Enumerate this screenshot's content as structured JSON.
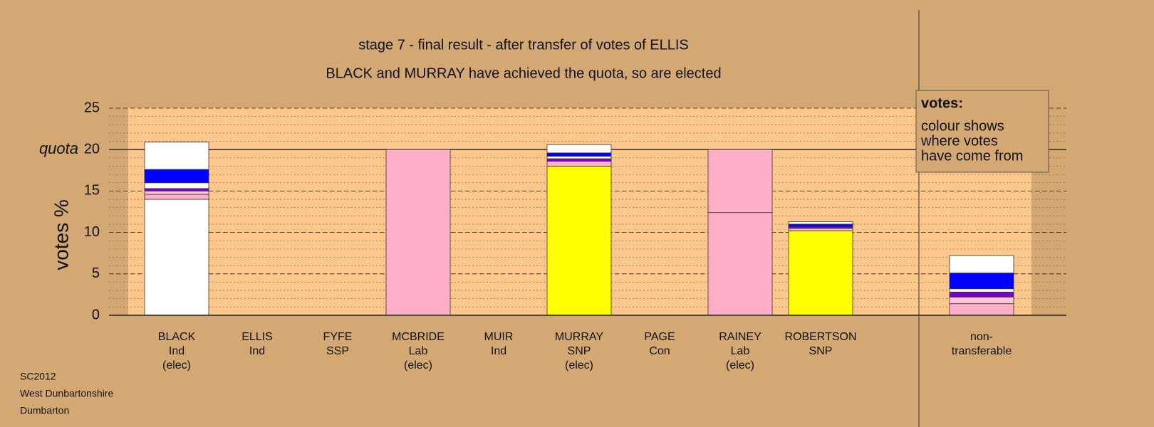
{
  "chart_data": {
    "type": "stacked-bar",
    "title": "stage 7 - final result - after transfer of votes of ELLIS",
    "subtitle": "BLACK and MURRAY have achieved the quota, so are elected",
    "y_label": "votes %",
    "quota_label": "quota",
    "quota": 20,
    "ylim": [
      0,
      25
    ],
    "yticks": [
      0,
      5,
      10,
      15,
      20,
      25
    ],
    "minor_step": 1,
    "categories": [
      [
        "BLACK",
        "Ind",
        "(elec)"
      ],
      [
        "ELLIS",
        "Ind"
      ],
      [
        "FYFE",
        "SSP"
      ],
      [
        "MCBRIDE",
        "Lab",
        "(elec)"
      ],
      [
        "MUIR",
        "Ind"
      ],
      [
        "MURRAY",
        "SNP",
        "(elec)"
      ],
      [
        "PAGE",
        "Con"
      ],
      [
        "RAINEY",
        "Lab",
        "(elec)"
      ],
      [
        "ROBERTSON",
        "SNP"
      ],
      [
        "non-",
        "transferable"
      ]
    ],
    "stacks": [
      [
        {
          "color": "#ffffff",
          "value": 14.0
        },
        {
          "color": "#ffb0c8",
          "value": 0.6
        },
        {
          "color": "#ffc6d8",
          "value": 0.4
        },
        {
          "color": "#7b00d4",
          "value": 0.3
        },
        {
          "color": "#ffffff",
          "value": 0.7
        },
        {
          "color": "#0000ff",
          "value": 1.6
        },
        {
          "color": "#ffffff",
          "value": 3.3
        }
      ],
      [],
      [],
      [
        {
          "color": "#ffb0c8",
          "value": 20.0
        }
      ],
      [],
      [
        {
          "color": "#ffff00",
          "value": 18.0
        },
        {
          "color": "#ffb0c8",
          "value": 0.6
        },
        {
          "color": "#7b00d4",
          "value": 0.3
        },
        {
          "color": "#ffffff",
          "value": 0.3
        },
        {
          "color": "#0000ff",
          "value": 0.4
        },
        {
          "color": "#ffffff",
          "value": 1.0
        }
      ],
      [],
      [
        {
          "color": "#ffb0c8",
          "value": 12.4
        },
        {
          "color": "#ffb0c8",
          "value": 7.6
        }
      ],
      [
        {
          "color": "#ffff00",
          "value": 10.2
        },
        {
          "color": "#ffb0c8",
          "value": 0.3
        },
        {
          "color": "#7b00d4",
          "value": 0.2
        },
        {
          "color": "#0000ff",
          "value": 0.3
        },
        {
          "color": "#ffffff",
          "value": 0.3
        }
      ],
      [
        {
          "color": "#ffb0c8",
          "value": 1.4
        },
        {
          "color": "#ffc6d8",
          "value": 0.8
        },
        {
          "color": "#7b00d4",
          "value": 0.6
        },
        {
          "color": "#ffffff",
          "value": 0.4
        },
        {
          "color": "#0000ff",
          "value": 1.9
        },
        {
          "color": "#ffffff",
          "value": 2.1
        }
      ]
    ],
    "legend_box": {
      "title": "votes:",
      "lines": [
        "colour shows",
        "where votes",
        "have come from"
      ]
    },
    "footer": [
      "SC2012",
      "West Dunbartonshire",
      "Dumbarton"
    ]
  }
}
